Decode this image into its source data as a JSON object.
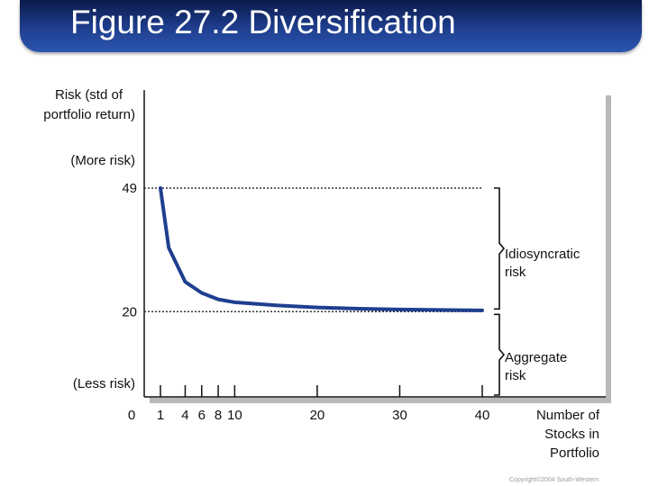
{
  "slide_title": "Figure 27.2 Diversification",
  "copyright": "Copyright©2004 South-Western",
  "colors": {
    "title_bar": "#1f3f8f",
    "curve": "#1f3f8f",
    "panel_shadow": "#b8b8b8",
    "text": "#111111"
  },
  "chart_data": {
    "type": "line",
    "ylabel": [
      "Risk (std of",
      "portfolio return)"
    ],
    "xlabel": [
      "Number of",
      "Stocks in",
      "Portfolio"
    ],
    "y_annotations": {
      "top": "(More risk)",
      "bottom": "(Less risk)"
    },
    "x_ticks": [
      1,
      4,
      6,
      8,
      10,
      20,
      30,
      40
    ],
    "x_tick_labels": [
      "1",
      "4",
      "6",
      "8",
      "10",
      "20",
      "30",
      "40"
    ],
    "origin_label": "0",
    "y_ticks": [
      49,
      20
    ],
    "y_tick_labels": [
      "49",
      "20"
    ],
    "reference_lines": [
      {
        "y": 49,
        "style": "dotted"
      },
      {
        "y": 20,
        "style": "dotted"
      }
    ],
    "series": [
      {
        "x": [
          1,
          2,
          4,
          6,
          8,
          10,
          15,
          20,
          25,
          30,
          35,
          40
        ],
        "y": [
          49,
          35,
          27,
          24.4,
          22.9,
          22.2,
          21.5,
          21.0,
          20.7,
          20.5,
          20.4,
          20.3
        ]
      }
    ],
    "brackets": [
      {
        "label": [
          "Idiosyncratic",
          "risk"
        ],
        "from": 20,
        "to": 49
      },
      {
        "label": [
          "Aggregate",
          "risk"
        ],
        "from": 0,
        "to": 20
      }
    ]
  }
}
